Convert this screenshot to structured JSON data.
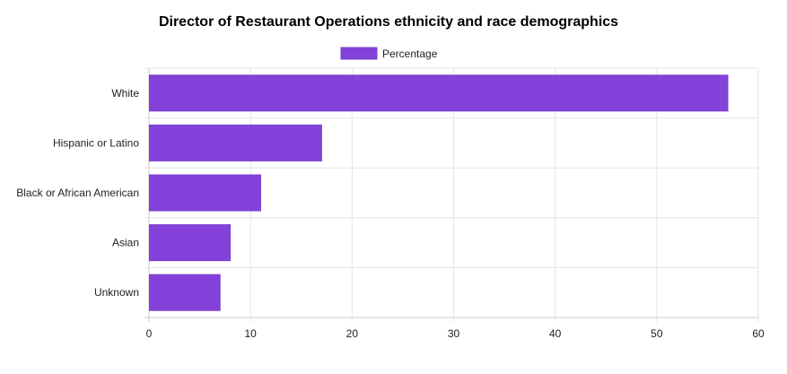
{
  "chart_data": {
    "type": "bar",
    "orientation": "horizontal",
    "title": "Director of Restaurant Operations ethnicity and race demographics",
    "categories": [
      "White",
      "Hispanic or Latino",
      "Black or African American",
      "Asian",
      "Unknown"
    ],
    "series": [
      {
        "name": "Percentage",
        "values": [
          57,
          17,
          11,
          8,
          7
        ],
        "color": "#8442DB"
      }
    ],
    "xlim": [
      0,
      60
    ],
    "x_ticks": [
      0,
      10,
      20,
      30,
      40,
      50,
      60
    ],
    "grid": true,
    "legend_position": "top"
  }
}
